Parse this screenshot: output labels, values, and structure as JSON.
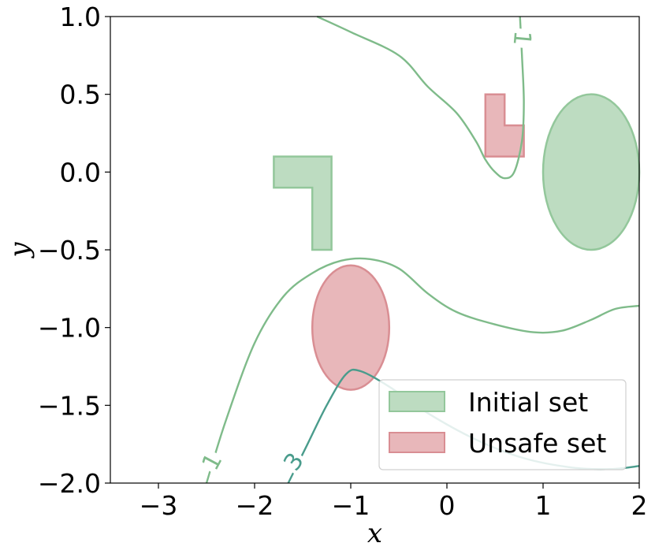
{
  "chart_data": {
    "type": "contour",
    "title": "",
    "xlabel": "x",
    "ylabel": "y",
    "xlim": [
      -3.5,
      2.0
    ],
    "ylim": [
      -2.0,
      1.0
    ],
    "xticks": [
      -3,
      -2,
      -1,
      0,
      1,
      2
    ],
    "xtick_labels": [
      "−3",
      "−2",
      "−1",
      "0",
      "1",
      "2"
    ],
    "yticks": [
      1.0,
      0.5,
      0.0,
      -0.5,
      -1.0,
      -1.5,
      -2.0
    ],
    "ytick_labels": [
      "1.0",
      "0.5",
      "0.0",
      "−0.5",
      "−1.0",
      "−1.5",
      "−2.0"
    ],
    "grid": false,
    "legend": {
      "placement": "lower-right",
      "entries": [
        {
          "label": "Initial set",
          "color": "#9fd0a8"
        },
        {
          "label": "Unsafe set",
          "color": "#e09aa0"
        }
      ]
    },
    "colors": {
      "initial_fill": "#bddcc1",
      "initial_edge": "#93c79b",
      "unsafe_fill": "#e8b7ba",
      "unsafe_edge": "#d98e93",
      "contour_1": "#7fbb8a",
      "contour_3": "#4a9c8c"
    },
    "regions": [
      {
        "set": "initial",
        "shape": "polygon",
        "points": [
          [
            -1.8,
            0.1
          ],
          [
            -1.2,
            0.1
          ],
          [
            -1.2,
            -0.5
          ],
          [
            -1.4,
            -0.5
          ],
          [
            -1.4,
            -0.1
          ],
          [
            -1.8,
            -0.1
          ]
        ]
      },
      {
        "set": "initial",
        "shape": "ellipse",
        "center": [
          1.5,
          0.0
        ],
        "rx": 0.5,
        "ry": 0.5
      },
      {
        "set": "unsafe",
        "shape": "polygon",
        "points": [
          [
            0.4,
            0.5
          ],
          [
            0.6,
            0.5
          ],
          [
            0.6,
            0.3
          ],
          [
            0.8,
            0.3
          ],
          [
            0.8,
            0.1
          ],
          [
            0.4,
            0.1
          ]
        ]
      },
      {
        "set": "unsafe",
        "shape": "ellipse",
        "center": [
          -1.0,
          -1.0
        ],
        "rx": 0.4,
        "ry": 0.4
      }
    ],
    "contours": [
      {
        "level": "1",
        "color_key": "contour_1",
        "paths": [
          [
            [
              -1.35,
              1.0
            ],
            [
              -1.0,
              0.9
            ],
            [
              -0.5,
              0.75
            ],
            [
              -0.2,
              0.55
            ],
            [
              0.1,
              0.38
            ],
            [
              0.3,
              0.2
            ],
            [
              0.4,
              0.08
            ],
            [
              0.5,
              0.0
            ],
            [
              0.6,
              -0.04
            ],
            [
              0.7,
              0.0
            ],
            [
              0.78,
              0.2
            ],
            [
              0.8,
              0.45
            ],
            [
              0.78,
              0.75
            ],
            [
              0.76,
              1.0
            ]
          ],
          [
            [
              -2.5,
              -2.0
            ],
            [
              -2.3,
              -1.6
            ],
            [
              -2.0,
              -1.1
            ],
            [
              -1.7,
              -0.8
            ],
            [
              -1.4,
              -0.65
            ],
            [
              -1.1,
              -0.57
            ],
            [
              -0.8,
              -0.56
            ],
            [
              -0.5,
              -0.62
            ],
            [
              -0.2,
              -0.78
            ],
            [
              0.1,
              -0.9
            ],
            [
              0.5,
              -0.98
            ],
            [
              0.9,
              -1.03
            ],
            [
              1.2,
              -1.02
            ],
            [
              1.5,
              -0.95
            ],
            [
              1.75,
              -0.88
            ],
            [
              2.0,
              -0.86
            ]
          ]
        ],
        "labels": [
          {
            "text": "1",
            "at": [
              0.79,
              0.86
            ],
            "angle": 95
          },
          {
            "text": "1",
            "at": [
              -2.45,
              -1.86
            ],
            "angle": -62
          }
        ]
      },
      {
        "level": "3",
        "color_key": "contour_3",
        "paths": [
          [
            [
              -1.65,
              -2.0
            ],
            [
              -1.45,
              -1.75
            ],
            [
              -1.25,
              -1.5
            ],
            [
              -1.05,
              -1.3
            ],
            [
              -0.9,
              -1.28
            ],
            [
              -0.6,
              -1.38
            ],
            [
              -0.2,
              -1.55
            ],
            [
              0.3,
              -1.72
            ],
            [
              0.8,
              -1.84
            ],
            [
              1.3,
              -1.9
            ],
            [
              1.7,
              -1.91
            ],
            [
              2.0,
              -1.89
            ]
          ]
        ],
        "labels": [
          {
            "text": "3",
            "at": [
              -1.6,
              -1.86
            ],
            "angle": -55
          }
        ]
      }
    ]
  }
}
